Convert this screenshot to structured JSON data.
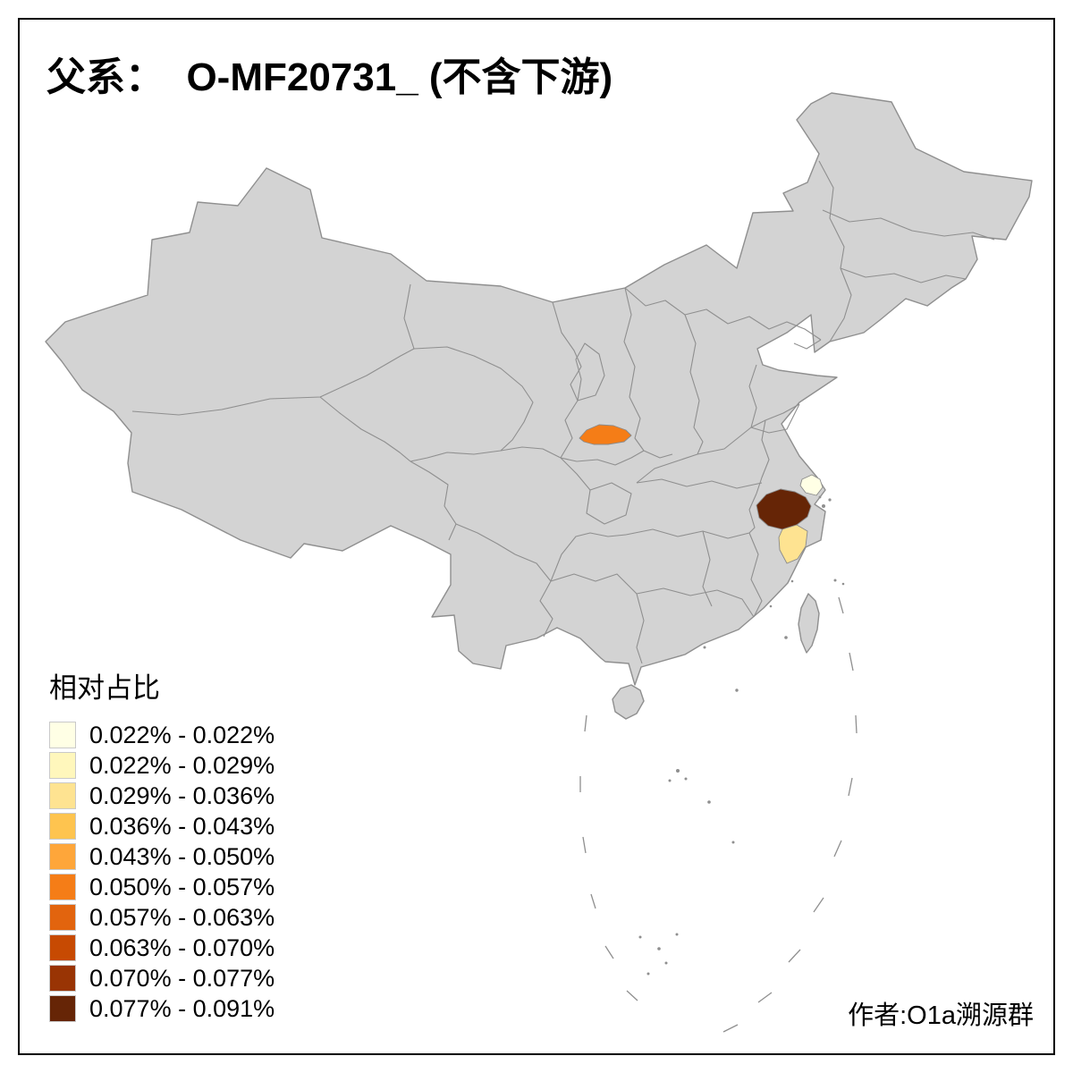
{
  "title": "父系：  O-MF20731_ (不含下游)",
  "credit": "作者:O1a溯源群",
  "legend": {
    "title": "相对占比",
    "items": [
      {
        "label": "0.022% - 0.022%",
        "color": "#FFFFE5"
      },
      {
        "label": "0.022% - 0.029%",
        "color": "#FFF7BC"
      },
      {
        "label": "0.029% - 0.036%",
        "color": "#FEE391"
      },
      {
        "label": "0.036% - 0.043%",
        "color": "#FEC44F"
      },
      {
        "label": "0.043% - 0.050%",
        "color": "#FEA63A"
      },
      {
        "label": "0.050% - 0.057%",
        "color": "#F57D17"
      },
      {
        "label": "0.057% - 0.063%",
        "color": "#E2640E"
      },
      {
        "label": "0.063% - 0.070%",
        "color": "#C74A02"
      },
      {
        "label": "0.070% - 0.077%",
        "color": "#993404"
      },
      {
        "label": "0.077% - 0.091%",
        "color": "#662506"
      }
    ]
  },
  "map": {
    "base_fill": "#D3D3D3",
    "border_color": "#8F8F8F",
    "highlighted_regions": [
      {
        "name": "guanzhong-shaanxi",
        "color": "#F57D17",
        "legend_class": "0.050% - 0.057%"
      },
      {
        "name": "shanghai",
        "color": "#FFFFE5",
        "legend_class": "0.022% - 0.022%"
      },
      {
        "name": "north-zhejiang",
        "color": "#662506",
        "legend_class": "0.077% - 0.091%"
      },
      {
        "name": "east-zhejiang",
        "color": "#FEE391",
        "legend_class": "0.029% - 0.036%"
      }
    ]
  }
}
